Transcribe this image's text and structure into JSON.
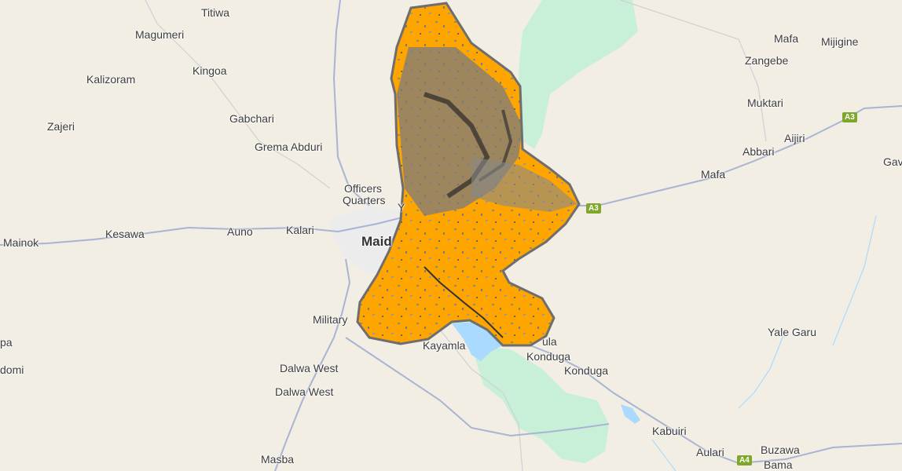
{
  "places": {
    "titiwa": "Titiwa",
    "magumeri": "Magumeri",
    "kingoa": "Kingoa",
    "kalizoram": "Kalizoram",
    "zajeri": "Zajeri",
    "gabchari": "Gabchari",
    "grema_abduri": "Grema Abduri",
    "officers": "Officers",
    "quarters": "Quarters",
    "y": "Y",
    "maid": "Maid",
    "kesawa": "Kesawa",
    "auno": "Auno",
    "kalari": "Kalari",
    "mainok": "Mainok",
    "military": "Military",
    "dalwa_west_1": "Dalwa West",
    "dalwa_west_2": "Dalwa West",
    "masba": "Masba",
    "pa": "pa",
    "domi": "domi",
    "kayamla": "Kayamla",
    "ula": "ula",
    "konduga_1": "Konduga",
    "konduga_2": "Konduga",
    "kabuiri": "Kabuiri",
    "aulari": "Aulari",
    "buzawa": "Buzawa",
    "bama": "Bama",
    "yale_garu": "Yale Garu",
    "mafa_1": "Mafa",
    "mijigine": "Mijigine",
    "zangebe": "Zangebe",
    "muktari": "Muktari",
    "aijiri": "Aijiri",
    "abbari": "Abbari",
    "mafa_2": "Mafa",
    "gav": "Gav"
  },
  "shields": {
    "a3_left": "A3",
    "a3_right": "A3",
    "a4": "A4"
  },
  "colors": {
    "background": "#f3eee4",
    "water": "#aadaff",
    "park": "#c8f0d8",
    "road": "#a9b4d4",
    "highway_shield": "#7fa72a",
    "overlay_orange": "#ffa500",
    "overlay_gray": "#7c7c7c",
    "overlay_outline": "#6e6e6e"
  }
}
